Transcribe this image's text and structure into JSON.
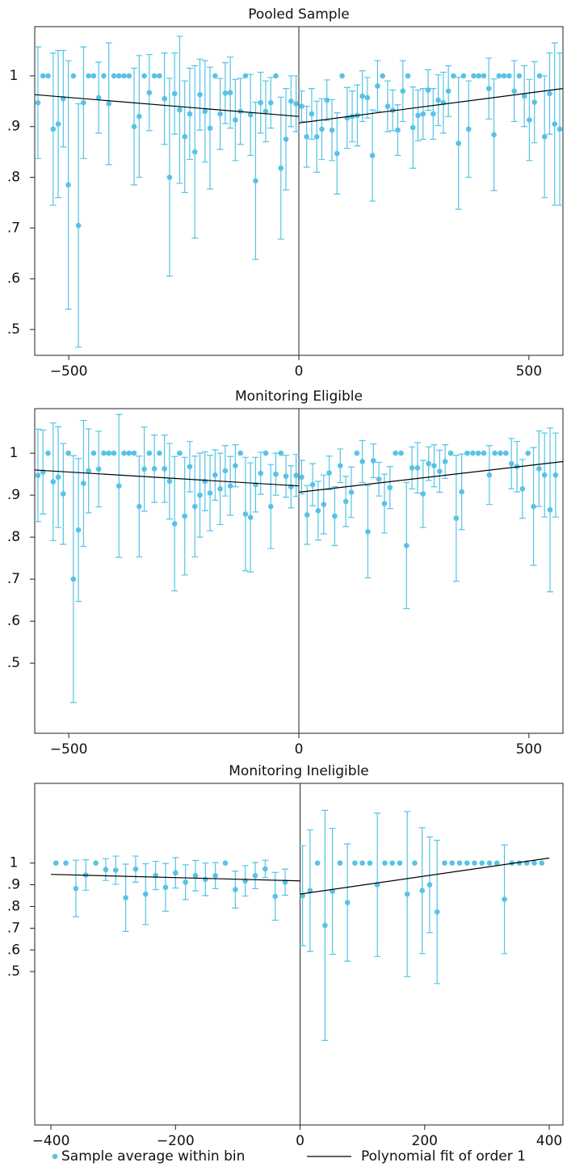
{
  "chart_data": [
    {
      "type": "scatter",
      "title": "Pooled Sample",
      "xlim": [
        -574,
        574
      ],
      "ylim": [
        0.449,
        1.097
      ],
      "xticks": [
        {
          "value": -500,
          "label": "−500"
        },
        0,
        500
      ],
      "yticks": [
        {
          "value": 0.5,
          "label": ".5"
        },
        {
          "value": 0.6,
          "label": ".6"
        },
        {
          "value": 0.7,
          "label": ".7"
        },
        {
          "value": 0.8,
          "label": ".8"
        },
        {
          "value": 0.9,
          "label": ".9"
        },
        1
      ],
      "series": [
        {
          "color": "#56c3e6",
          "x": [
            -567,
            -556,
            -545,
            -534,
            -523,
            -512,
            -501,
            -490,
            -479,
            -468,
            -457,
            -446,
            -435,
            -424,
            -413,
            -402,
            -391,
            -380,
            -369,
            -358,
            -347,
            -336,
            -325,
            -314,
            -303,
            -292,
            -281,
            -270,
            -259,
            -248,
            -237,
            -226,
            -215,
            -204,
            -193,
            -182,
            -171,
            -160,
            -149,
            -138,
            -127,
            -116,
            -105,
            -94,
            -83,
            -72,
            -61,
            -50,
            -39,
            -28,
            -17,
            -6,
            6,
            17,
            28,
            39,
            50,
            61,
            72,
            83,
            94,
            105,
            116,
            127,
            138,
            149,
            160,
            171,
            182,
            193,
            204,
            215,
            226,
            237,
            248,
            259,
            270,
            281,
            292,
            303,
            314,
            325,
            336,
            347,
            358,
            369,
            380,
            391,
            402,
            413,
            424,
            435,
            446,
            457,
            468,
            479,
            490,
            501,
            512,
            523,
            534,
            545,
            556,
            567
          ],
          "values": [
            0.947,
            1,
            1,
            0.895,
            0.905,
            0.955,
            0.785,
            1,
            0.705,
            0.947,
            1,
            1,
            0.957,
            1,
            0.945,
            1,
            1,
            1,
            1,
            0.9,
            0.92,
            1,
            0.967,
            1,
            1,
            0.955,
            0.8,
            0.965,
            0.933,
            0.88,
            0.925,
            0.85,
            0.963,
            0.93,
            0.897,
            1,
            0.925,
            0.966,
            0.967,
            0.913,
            0.93,
            1,
            0.923,
            0.793,
            0.947,
            0.93,
            0.947,
            1,
            0.818,
            0.875,
            0.95,
            0.945,
            0.94,
            0.88,
            0.925,
            0.88,
            0.895,
            0.952,
            0.893,
            0.847,
            1,
            0.917,
            0.92,
            0.922,
            0.96,
            0.957,
            0.843,
            0.98,
            1,
            0.94,
            0.932,
            0.893,
            0.97,
            1,
            0.898,
            0.922,
            0.925,
            0.972,
            0.925,
            0.952,
            0.947,
            0.97,
            1,
            0.867,
            1,
            0.895,
            1,
            1,
            1,
            0.975,
            0.884,
            1,
            1,
            1,
            0.97,
            1,
            0.96,
            0.913,
            0.948,
            1,
            0.88,
            0.965,
            0.905,
            0.895
          ],
          "errors": [
            0.11,
            0,
            0,
            0.15,
            0.145,
            0.095,
            0.245,
            0,
            0.24,
            0.11,
            0,
            0,
            0.07,
            0,
            0.12,
            0,
            0,
            0,
            0,
            0.115,
            0.12,
            0,
            0.075,
            0,
            0,
            0.09,
            0.195,
            0.08,
            0.145,
            0.11,
            0.09,
            0.17,
            0.07,
            0.1,
            0.12,
            0,
            0.07,
            0.06,
            0.07,
            0.08,
            0.065,
            0,
            0.08,
            0.155,
            0.06,
            0.06,
            0.05,
            0,
            0.14,
            0.1,
            0.05,
            0.055,
            0.03,
            0.06,
            0.05,
            0.07,
            0.06,
            0.04,
            0.06,
            0.08,
            0,
            0.06,
            0.05,
            0.06,
            0.05,
            0.04,
            0.09,
            0.05,
            0,
            0.05,
            0.04,
            0.05,
            0.06,
            0,
            0.08,
            0.05,
            0.05,
            0.04,
            0.05,
            0.05,
            0.06,
            0.05,
            0,
            0.13,
            0,
            0.095,
            0,
            0,
            0,
            0.06,
            0.11,
            0,
            0,
            0,
            0.06,
            0,
            0.06,
            0.08,
            0.08,
            0,
            0.12,
            0.08,
            0.16,
            0.15
          ]
        },
        {
          "type": "line",
          "color": "#000000",
          "segments": [
            {
              "x": [
                -574,
                0
              ],
              "values": [
                0.963,
                0.92
              ]
            },
            {
              "x": [
                0,
                574
              ],
              "values": [
                0.907,
                0.975
              ]
            }
          ]
        }
      ]
    },
    {
      "type": "scatter",
      "title": "Monitoring Eligible",
      "xlim": [
        -574,
        574
      ],
      "ylim": [
        0.333,
        1.106
      ],
      "xticks": [
        {
          "value": -500,
          "label": "−500"
        },
        0,
        500
      ],
      "yticks": [
        {
          "value": 0.5,
          "label": ".5"
        },
        {
          "value": 0.6,
          "label": ".6"
        },
        {
          "value": 0.7,
          "label": ".7"
        },
        {
          "value": 0.8,
          "label": ".8"
        },
        {
          "value": 0.9,
          "label": ".9"
        },
        1
      ],
      "series": [
        {
          "color": "#56c3e6",
          "x": [
            -567,
            -556,
            -545,
            -534,
            -523,
            -512,
            -501,
            -490,
            -479,
            -468,
            -457,
            -446,
            -435,
            -424,
            -413,
            -402,
            -391,
            -380,
            -369,
            -358,
            -347,
            -336,
            -325,
            -314,
            -303,
            -292,
            -281,
            -270,
            -259,
            -248,
            -237,
            -226,
            -215,
            -204,
            -193,
            -182,
            -171,
            -160,
            -149,
            -138,
            -127,
            -116,
            -105,
            -94,
            -83,
            -72,
            -61,
            -50,
            -39,
            -28,
            -17,
            -6,
            6,
            18,
            30,
            42,
            54,
            66,
            78,
            90,
            102,
            114,
            126,
            138,
            150,
            162,
            174,
            186,
            198,
            210,
            222,
            234,
            246,
            258,
            270,
            282,
            294,
            306,
            318,
            330,
            342,
            354,
            366,
            378,
            390,
            402,
            414,
            426,
            438,
            450,
            462,
            474,
            486,
            498,
            510,
            522,
            534,
            546,
            558
          ],
          "values": [
            0.947,
            0.955,
            1,
            0.932,
            0.943,
            0.903,
            1,
            0.7,
            0.817,
            0.928,
            0.958,
            1,
            0.962,
            1,
            1,
            1,
            0.922,
            1,
            1,
            1,
            0.873,
            0.962,
            1,
            0.963,
            1,
            0.963,
            0.933,
            0.832,
            1,
            0.85,
            0.968,
            0.873,
            0.9,
            0.933,
            0.905,
            0.948,
            0.915,
            0.958,
            0.922,
            0.97,
            1,
            0.855,
            0.847,
            0.925,
            0.952,
            1,
            0.873,
            0.95,
            1,
            0.945,
            0.92,
            0.947,
            0.943,
            0.853,
            0.925,
            0.863,
            0.878,
            0.953,
            0.85,
            0.97,
            0.885,
            0.907,
            1,
            0.98,
            0.813,
            0.982,
            0.938,
            0.88,
            0.918,
            1,
            1,
            0.78,
            0.965,
            0.965,
            0.903,
            0.975,
            0.97,
            0.957,
            0.98,
            1,
            0.845,
            0.908,
            1,
            1,
            1,
            1,
            0.948,
            1,
            1,
            1,
            0.975,
            0.968,
            0.915,
            1,
            0.873,
            0.963,
            0.948,
            0.865,
            0.948
          ],
          "errors": [
            0.11,
            0.1,
            0,
            0.14,
            0.12,
            0.12,
            0,
            0.294,
            0.17,
            0.15,
            0.1,
            0,
            0.09,
            0,
            0,
            0,
            0.17,
            0,
            0,
            0,
            0.12,
            0.1,
            0,
            0.08,
            0,
            0.08,
            0.09,
            0.16,
            0,
            0.14,
            0.06,
            0.12,
            0.1,
            0.07,
            0.09,
            0.06,
            0.085,
            0.06,
            0.07,
            0.05,
            0,
            0.135,
            0.13,
            0.065,
            0.05,
            0,
            0.1,
            0.05,
            0,
            0.05,
            0.05,
            0.05,
            0.04,
            0.07,
            0.05,
            0.07,
            0.07,
            0.04,
            0.07,
            0.04,
            0.06,
            0.06,
            0,
            0.05,
            0.11,
            0.04,
            0.04,
            0.07,
            0.05,
            0,
            0,
            0.15,
            0.05,
            0.06,
            0.08,
            0.04,
            0.05,
            0.05,
            0.04,
            0,
            0.15,
            0.09,
            0,
            0,
            0,
            0,
            0.07,
            0,
            0,
            0,
            0.06,
            0.06,
            0.07,
            0,
            0.14,
            0.09,
            0.1,
            0.195,
            0.1
          ]
        },
        {
          "type": "line",
          "color": "#000000",
          "segments": [
            {
              "x": [
                -574,
                0
              ],
              "values": [
                0.96,
                0.922
              ]
            },
            {
              "x": [
                0,
                574
              ],
              "values": [
                0.907,
                0.98
              ]
            }
          ]
        }
      ]
    },
    {
      "type": "scatter",
      "title": "Monitoring Ineligible",
      "xlim": [
        -426,
        422
      ],
      "ylim": [
        -0.206,
        1.367
      ],
      "xticks": [
        {
          "value": -400,
          "label": "−400"
        },
        {
          "value": -200,
          "label": "−200"
        },
        0,
        200,
        400
      ],
      "yticks": [
        {
          "value": 0.5,
          "label": ".5"
        },
        {
          "value": 0.6,
          "label": ".6"
        },
        {
          "value": 0.7,
          "label": ".7"
        },
        {
          "value": 0.8,
          "label": ".8"
        },
        {
          "value": 0.9,
          "label": ".9"
        },
        1
      ],
      "series": [
        {
          "name": "Sample average within bin",
          "color": "#56c3e6",
          "x": [
            -392,
            -376,
            -360,
            -344,
            -328,
            -312,
            -296,
            -280,
            -264,
            -248,
            -232,
            -216,
            -200,
            -184,
            -168,
            -152,
            -136,
            -120,
            -104,
            -88,
            -72,
            -56,
            -40,
            -24,
            4,
            16,
            28,
            40,
            52,
            64,
            76,
            88,
            100,
            112,
            124,
            136,
            148,
            160,
            172,
            184,
            196,
            208,
            220,
            232,
            244,
            256,
            268,
            280,
            292,
            304,
            316,
            328,
            340,
            352,
            364,
            376,
            388
          ],
          "values": [
            1,
            1,
            0.883,
            0.945,
            1,
            0.97,
            0.967,
            0.84,
            0.972,
            0.857,
            0.943,
            0.888,
            0.955,
            0.912,
            0.942,
            0.925,
            0.942,
            1,
            0.878,
            0.918,
            0.942,
            0.973,
            0.847,
            0.912,
            0.85,
            0.873,
            1,
            0.713,
            0.87,
            1,
            0.818,
            1,
            1,
            1,
            0.9,
            1,
            1,
            1,
            0.857,
            1,
            0.873,
            0.9,
            0.775,
            1,
            1,
            1,
            1,
            1,
            1,
            1,
            1,
            0.833,
            1,
            1,
            1,
            1,
            1
          ],
          "errors": [
            0,
            0,
            0.13,
            0.07,
            0,
            0.05,
            0.065,
            0.155,
            0.06,
            0.14,
            0.065,
            0.11,
            0.07,
            0.08,
            0.07,
            0.075,
            0.06,
            0,
            0.085,
            0.07,
            0.06,
            0.04,
            0.11,
            0.06,
            0.23,
            0.28,
            0,
            0.53,
            0.29,
            0,
            0.27,
            0,
            0,
            0,
            0.33,
            0,
            0,
            0,
            0.38,
            0,
            0.29,
            0.22,
            0.33,
            0,
            0,
            0,
            0,
            0,
            0,
            0,
            0,
            0.25,
            0,
            0,
            0,
            0,
            0
          ]
        },
        {
          "type": "line",
          "name": "Polynomial fit of order 1",
          "color": "#000000",
          "segments": [
            {
              "x": [
                -400,
                0
              ],
              "values": [
                0.948,
                0.918
              ]
            },
            {
              "x": [
                0,
                400
              ],
              "values": [
                0.857,
                1.023
              ]
            }
          ]
        }
      ]
    }
  ]
}
